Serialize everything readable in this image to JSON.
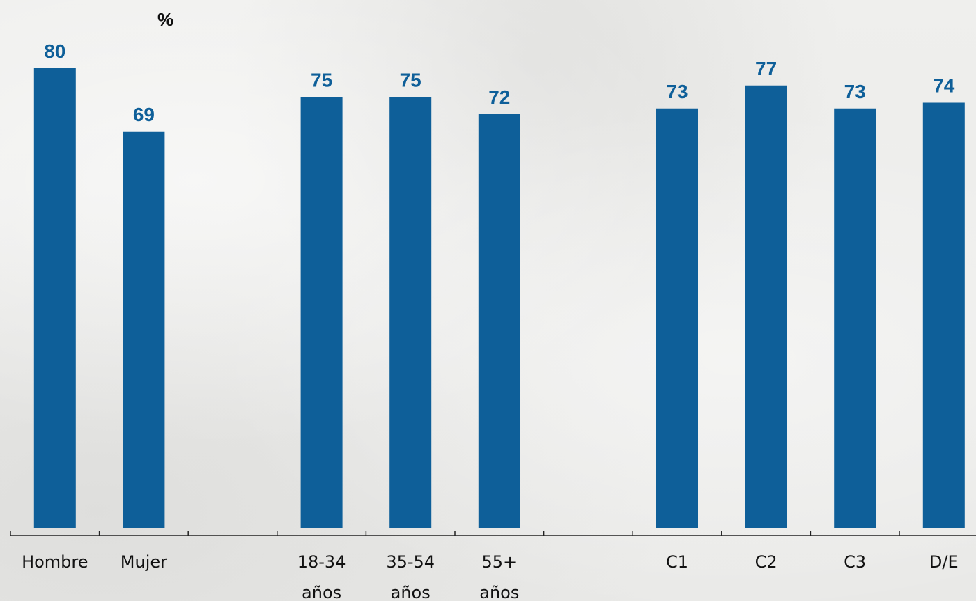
{
  "chart_data": {
    "type": "bar",
    "unit_label": "%",
    "ylim": [
      0,
      80
    ],
    "grid": false,
    "bar_color": "#0e5f99",
    "label_color": "#0e5f99",
    "axis_color": "#222222",
    "slots": [
      {
        "category": [
          "Hombre"
        ],
        "value": 80
      },
      {
        "category": [
          "Mujer"
        ],
        "value": 69
      },
      null,
      {
        "category": [
          "18-34",
          "años"
        ],
        "value": 75
      },
      {
        "category": [
          "35-54",
          "años"
        ],
        "value": 75
      },
      {
        "category": [
          "55+",
          "años"
        ],
        "value": 72
      },
      null,
      {
        "category": [
          "C1"
        ],
        "value": 73
      },
      {
        "category": [
          "C2"
        ],
        "value": 77
      },
      {
        "category": [
          "C3"
        ],
        "value": 73
      },
      {
        "category": [
          "D/E"
        ],
        "value": 74
      }
    ]
  }
}
